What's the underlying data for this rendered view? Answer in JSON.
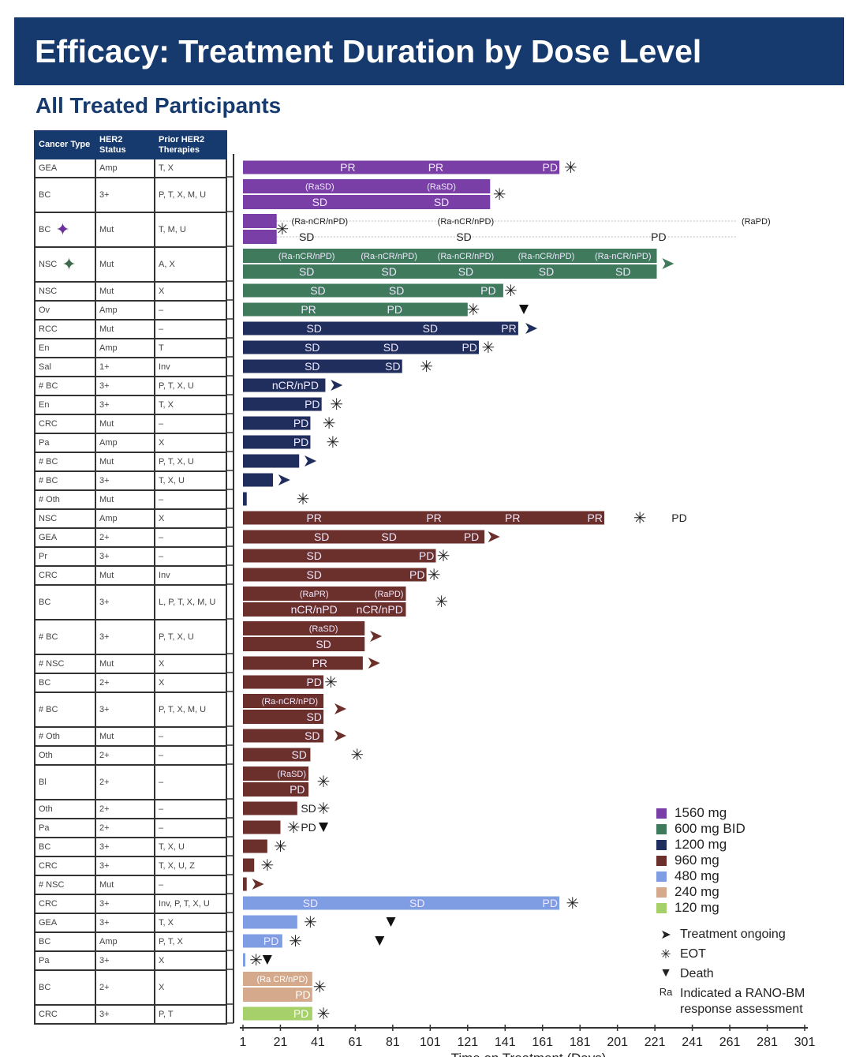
{
  "title": "Efficacy: Treatment Duration by Dose Level",
  "subtitle": "All Treated Participants",
  "table_headers": [
    "Cancer Type",
    "HER2 Status",
    "Prior HER2 Therapies"
  ],
  "legend": {
    "doses": [
      {
        "label": "1560 mg",
        "color": "#7a3fa6"
      },
      {
        "label": "600 mg BID",
        "color": "#3e7a5b"
      },
      {
        "label": "1200 mg",
        "color": "#1f2e5c"
      },
      {
        "label": "960 mg",
        "color": "#6b302b"
      },
      {
        "label": "480 mg",
        "color": "#7f9de3"
      },
      {
        "label": "240 mg",
        "color": "#d5a98b"
      },
      {
        "label": "120 mg",
        "color": "#a5d06a"
      }
    ],
    "symbols": [
      {
        "icon": "arrow",
        "label": "Treatment ongoing"
      },
      {
        "icon": "asterisk",
        "label": "EOT"
      },
      {
        "icon": "triangle-down",
        "label": "Death"
      },
      {
        "icon": "Ra",
        "label": "Indicated a RANO-BM response assessment"
      }
    ]
  },
  "chart_data": {
    "type": "swimmer",
    "xlabel": "Time on Treatment (Days)",
    "xlim": [
      1,
      301
    ],
    "xticks": [
      1,
      21,
      41,
      61,
      81,
      101,
      121,
      141,
      161,
      181,
      201,
      221,
      241,
      261,
      281,
      301
    ],
    "rows": [
      {
        "cancer": "GEA",
        "her2": "Amp",
        "prior": "T, X",
        "dose": 0,
        "end": 170,
        "lines": [
          [
            [
              "PR",
              57
            ],
            [
              "PR",
              104
            ],
            [
              "PD",
              165
            ]
          ]
        ],
        "m": [
          [
            "eot",
            176
          ]
        ]
      },
      {
        "cancer": "BC",
        "her2": "3+",
        "prior": "P, T, X, M, U",
        "dose": 0,
        "end": 133,
        "lines": [
          [
            [
              "(RaSD)",
              42
            ],
            [
              "(RaSD)",
              107
            ]
          ],
          [
            [
              "SD",
              42
            ],
            [
              "SD",
              107
            ]
          ]
        ],
        "m": [
          [
            "eot",
            138
          ]
        ]
      },
      {
        "cancer": "BC",
        "her2": "Mut",
        "prior": "T, M, U",
        "dose": 0,
        "star": "#6b2f9e",
        "end": 19,
        "ext": 265,
        "lines": [
          [
            [
              "(Ra-nCR/nPD)",
              42
            ],
            [
              "(Ra-nCR/nPD)",
              120
            ],
            [
              "(RaPD)",
              275
            ]
          ],
          [
            [
              "SD",
              35
            ],
            [
              "SD",
              119
            ],
            [
              "PD",
              223
            ]
          ]
        ],
        "m": [
          [
            "eot",
            22
          ]
        ]
      },
      {
        "cancer": "NSC",
        "her2": "Mut",
        "prior": "A, X",
        "dose": 1,
        "star": "#3e6a4e",
        "end": 222,
        "lines": [
          [
            [
              "(Ra-nCR/nPD)",
              35
            ],
            [
              "(Ra-nCR/nPD)",
              79
            ],
            [
              "(Ra-nCR/nPD)",
              120
            ],
            [
              "(Ra-nCR/nPD)",
              163
            ],
            [
              "(Ra-nCR/nPD)",
              204
            ]
          ],
          [
            [
              "SD",
              35
            ],
            [
              "SD",
              79
            ],
            [
              "SD",
              120
            ],
            [
              "SD",
              163
            ],
            [
              "SD",
              204
            ]
          ]
        ],
        "m": [
          [
            "ongoing",
            227
          ]
        ]
      },
      {
        "cancer": "NSC",
        "her2": "Mut",
        "prior": "X",
        "dose": 1,
        "end": 140,
        "lines": [
          [
            [
              "SD",
              41
            ],
            [
              "SD",
              83
            ],
            [
              "PD",
              132
            ]
          ]
        ],
        "m": [
          [
            "eot",
            144
          ]
        ]
      },
      {
        "cancer": "Ov",
        "her2": "Amp",
        "prior": "–",
        "dose": 1,
        "end": 121,
        "lines": [
          [
            [
              "PR",
              36
            ],
            [
              "PD",
              82
            ]
          ]
        ],
        "m": [
          [
            "eot",
            124
          ],
          [
            "death",
            151
          ]
        ]
      },
      {
        "cancer": "RCC",
        "her2": "Mut",
        "prior": "–",
        "dose": 2,
        "end": 148,
        "lines": [
          [
            [
              "SD",
              39
            ],
            [
              "SD",
              101
            ],
            [
              "PR",
              143
            ]
          ]
        ],
        "m": [
          [
            "ongoing",
            154
          ]
        ]
      },
      {
        "cancer": "En",
        "her2": "Amp",
        "prior": "T",
        "dose": 2,
        "end": 127,
        "lines": [
          [
            [
              "SD",
              38
            ],
            [
              "SD",
              80
            ],
            [
              "PD",
              122
            ]
          ]
        ],
        "m": [
          [
            "eot",
            132
          ]
        ]
      },
      {
        "cancer": "Sal",
        "her2": "1+",
        "prior": "Inv",
        "dose": 2,
        "end": 86,
        "lines": [
          [
            [
              "SD",
              38
            ],
            [
              "SD",
              81
            ]
          ]
        ],
        "m": [
          [
            "eot",
            99
          ]
        ]
      },
      {
        "cancer": "# BC",
        "her2": "3+",
        "prior": "P, T, X, U",
        "dose": 2,
        "end": 45,
        "lines": [
          [
            [
              "nCR/nPD",
              29
            ]
          ]
        ],
        "m": [
          [
            "ongoing",
            50
          ]
        ]
      },
      {
        "cancer": "En",
        "her2": "3+",
        "prior": "T, X",
        "dose": 2,
        "end": 43,
        "lines": [
          [
            [
              "PD",
              38
            ]
          ]
        ],
        "m": [
          [
            "eot",
            51
          ]
        ]
      },
      {
        "cancer": "CRC",
        "her2": "Mut",
        "prior": "–",
        "dose": 2,
        "end": 37,
        "lines": [
          [
            [
              "PD",
              32
            ]
          ]
        ],
        "m": [
          [
            "eot",
            47
          ]
        ]
      },
      {
        "cancer": "Pa",
        "her2": "Amp",
        "prior": "X",
        "dose": 2,
        "end": 37,
        "lines": [
          [
            [
              "PD",
              32
            ]
          ]
        ],
        "m": [
          [
            "eot",
            49
          ]
        ]
      },
      {
        "cancer": "# BC",
        "her2": "Mut",
        "prior": "P, T, X, U",
        "dose": 2,
        "end": 31,
        "lines": [
          []
        ],
        "m": [
          [
            "ongoing",
            36
          ]
        ]
      },
      {
        "cancer": "# BC",
        "her2": "3+",
        "prior": "T, X, U",
        "dose": 2,
        "end": 17,
        "lines": [
          []
        ],
        "m": [
          [
            "ongoing",
            22
          ]
        ]
      },
      {
        "cancer": "# Oth",
        "her2": "Mut",
        "prior": "–",
        "dose": 2,
        "end": 3,
        "lines": [
          []
        ],
        "m": [
          [
            "eot",
            33
          ]
        ]
      },
      {
        "cancer": "NSC",
        "her2": "Amp",
        "prior": "X",
        "dose": 3,
        "end": 194,
        "lines": [
          [
            [
              "PR",
              39
            ],
            [
              "PR",
              103
            ],
            [
              "PR",
              145
            ],
            [
              "PR",
              189
            ],
            [
              "PD",
              234
            ]
          ]
        ],
        "m": [
          [
            "eot",
            213
          ]
        ]
      },
      {
        "cancer": "GEA",
        "her2": "2+",
        "prior": "–",
        "dose": 3,
        "end": 130,
        "lines": [
          [
            [
              "SD",
              43
            ],
            [
              "SD",
              79
            ],
            [
              "PD",
              123
            ]
          ]
        ],
        "m": [
          [
            "ongoing",
            134
          ]
        ]
      },
      {
        "cancer": "Pr",
        "her2": "3+",
        "prior": "–",
        "dose": 3,
        "end": 104,
        "lines": [
          [
            [
              "SD",
              39
            ],
            [
              "PD",
              99
            ]
          ]
        ],
        "m": [
          [
            "eot",
            108
          ]
        ]
      },
      {
        "cancer": "CRC",
        "her2": "Mut",
        "prior": "Inv",
        "dose": 3,
        "end": 99,
        "lines": [
          [
            [
              "SD",
              39
            ],
            [
              "PD",
              94
            ]
          ]
        ],
        "m": [
          [
            "eot",
            103
          ]
        ]
      },
      {
        "cancer": "BC",
        "her2": "3+",
        "prior": "L, P, T, X, M, U",
        "dose": 3,
        "end": 88,
        "lines": [
          [
            [
              "(RaPR)",
              39
            ],
            [
              "(RaPD)",
              79
            ]
          ],
          [
            [
              "nCR/nPD",
              39
            ],
            [
              "nCR/nPD",
              74
            ]
          ]
        ],
        "m": [
          [
            "eot",
            107
          ]
        ]
      },
      {
        "cancer": "# BC",
        "her2": "3+",
        "prior": "P, T, X, U",
        "dose": 3,
        "end": 66,
        "lines": [
          [
            [
              "(RaSD)",
              44
            ]
          ],
          [
            [
              "SD",
              44
            ]
          ]
        ],
        "m": [
          [
            "ongoing",
            71
          ]
        ]
      },
      {
        "cancer": "# NSC",
        "her2": "Mut",
        "prior": "X",
        "dose": 3,
        "end": 65,
        "lines": [
          [
            [
              "PR",
              42
            ]
          ]
        ],
        "m": [
          [
            "ongoing",
            70
          ]
        ]
      },
      {
        "cancer": "BC",
        "her2": "2+",
        "prior": "X",
        "dose": 3,
        "end": 44,
        "lines": [
          [
            [
              "PD",
              39
            ]
          ]
        ],
        "m": [
          [
            "eot",
            48
          ]
        ]
      },
      {
        "cancer": "# BC",
        "her2": "3+",
        "prior": "P, T, X, M, U",
        "dose": 3,
        "end": 44,
        "lines": [
          [
            [
              "(Ra-nCR/nPD)",
              26
            ]
          ],
          [
            [
              "SD",
              39
            ]
          ]
        ],
        "m": [
          [
            "ongoing",
            52
          ]
        ]
      },
      {
        "cancer": "# Oth",
        "her2": "Mut",
        "prior": "–",
        "dose": 3,
        "end": 44,
        "lines": [
          [
            [
              "SD",
              38
            ]
          ]
        ],
        "m": [
          [
            "ongoing",
            52
          ]
        ]
      },
      {
        "cancer": "Oth",
        "her2": "2+",
        "prior": "–",
        "dose": 3,
        "end": 37,
        "lines": [
          [
            [
              "SD",
              31
            ]
          ]
        ],
        "m": [
          [
            "eot",
            62
          ]
        ]
      },
      {
        "cancer": "Bl",
        "her2": "2+",
        "prior": "–",
        "dose": 3,
        "end": 36,
        "lines": [
          [
            [
              "(RaSD)",
              27
            ]
          ],
          [
            [
              "PD",
              30
            ]
          ]
        ],
        "m": [
          [
            "eot",
            44
          ]
        ]
      },
      {
        "cancer": "Oth",
        "her2": "2+",
        "prior": "–",
        "dose": 3,
        "end": 30,
        "lines": [
          [
            [
              "SD",
              36
            ]
          ]
        ],
        "m": [
          [
            "eot",
            44
          ]
        ]
      },
      {
        "cancer": "Pa",
        "her2": "2+",
        "prior": "–",
        "dose": 3,
        "end": 21,
        "lines": [
          [
            [
              "PD",
              36
            ]
          ]
        ],
        "m": [
          [
            "eot",
            28
          ],
          [
            "death",
            44
          ]
        ]
      },
      {
        "cancer": "BC",
        "her2": "3+",
        "prior": "T, X, U",
        "dose": 3,
        "end": 14,
        "lines": [
          []
        ],
        "m": [
          [
            "eot",
            21
          ]
        ]
      },
      {
        "cancer": "CRC",
        "her2": "3+",
        "prior": "T, X, U, Z",
        "dose": 3,
        "end": 7,
        "lines": [
          []
        ],
        "m": [
          [
            "eot",
            14
          ]
        ]
      },
      {
        "cancer": "# NSC",
        "her2": "Mut",
        "prior": "–",
        "dose": 3,
        "end": 3,
        "lines": [
          []
        ],
        "m": [
          [
            "ongoing",
            8
          ]
        ]
      },
      {
        "cancer": "CRC",
        "her2": "3+",
        "prior": "Inv, P, T, X, U",
        "dose": 4,
        "end": 170,
        "lines": [
          [
            [
              "SD",
              37
            ],
            [
              "SD",
              94
            ],
            [
              "PD",
              165
            ]
          ]
        ],
        "m": [
          [
            "eot",
            177
          ]
        ]
      },
      {
        "cancer": "GEA",
        "her2": "3+",
        "prior": "T, X",
        "dose": 4,
        "end": 30,
        "lines": [
          []
        ],
        "m": [
          [
            "eot",
            37
          ],
          [
            "death",
            80
          ]
        ]
      },
      {
        "cancer": "BC",
        "her2": "Amp",
        "prior": "P, T, X",
        "dose": 4,
        "end": 22,
        "lines": [
          [
            [
              "PD",
              16
            ]
          ]
        ],
        "m": [
          [
            "eot",
            29
          ],
          [
            "death",
            74
          ]
        ]
      },
      {
        "cancer": "Pa",
        "her2": "3+",
        "prior": "X",
        "dose": 4,
        "end": 2,
        "lines": [
          []
        ],
        "m": [
          [
            "eot",
            8
          ],
          [
            "death",
            14
          ]
        ]
      },
      {
        "cancer": "BC",
        "her2": "2+",
        "prior": "X",
        "dose": 5,
        "end": 38,
        "lines": [
          [
            [
              "(Ra CR/nPD)",
              22
            ]
          ],
          [
            [
              "PD",
              33
            ]
          ]
        ],
        "m": [
          [
            "eot",
            42
          ]
        ]
      },
      {
        "cancer": "CRC",
        "her2": "3+",
        "prior": "P, T",
        "dose": 6,
        "end": 38,
        "lines": [
          [
            [
              "PD",
              32
            ]
          ]
        ],
        "m": [
          [
            "eot",
            44
          ]
        ]
      }
    ]
  }
}
